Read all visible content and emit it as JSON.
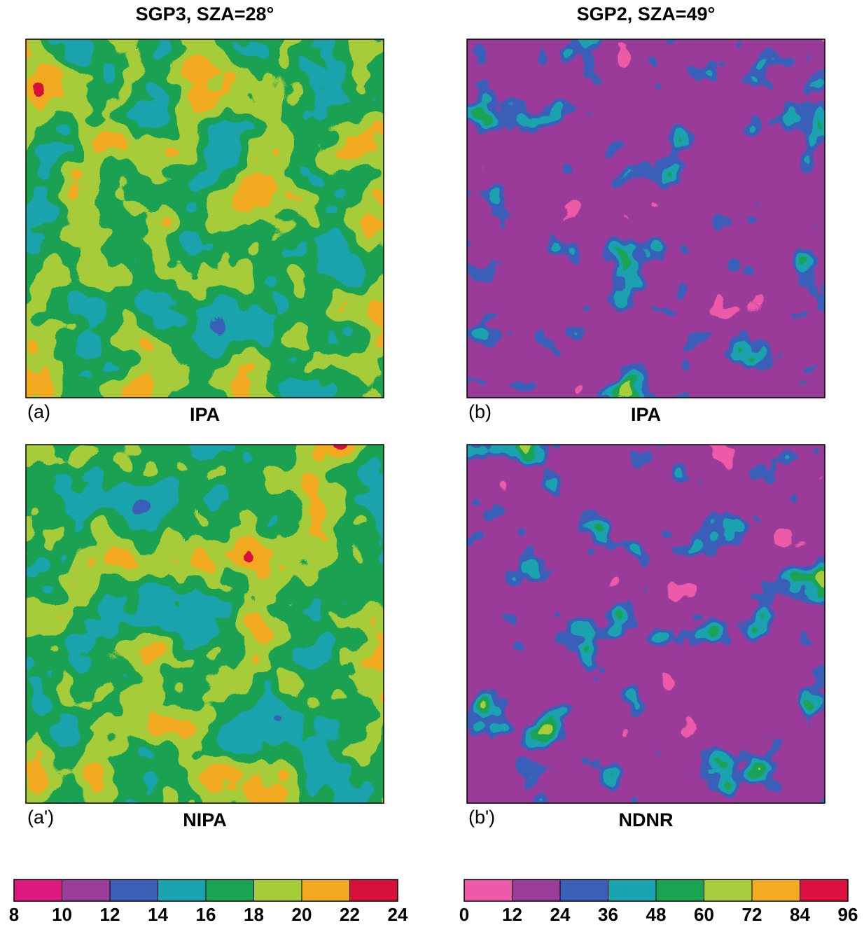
{
  "columns": [
    {
      "title": "SGP3, SZA=28°",
      "panels": [
        {
          "label": "(a)",
          "method": "IPA"
        },
        {
          "label": "(a')",
          "method": "NIPA"
        }
      ]
    },
    {
      "title": "SGP2, SZA=49°",
      "panels": [
        {
          "label": "(b)",
          "method": "IPA"
        },
        {
          "label": "(b')",
          "method": "NDNR"
        }
      ]
    }
  ],
  "colorbars": [
    {
      "ticks": [
        8,
        10,
        12,
        14,
        16,
        18,
        20,
        22,
        24
      ],
      "colors": [
        "#dc1a80",
        "#9b3c9a",
        "#3b60b6",
        "#1aa3ae",
        "#1aa352",
        "#a6cc3a",
        "#f2aa20",
        "#d8103c"
      ]
    },
    {
      "ticks": [
        0,
        12,
        24,
        36,
        48,
        60,
        72,
        84,
        96
      ],
      "colors": [
        "#ee5aa8",
        "#9a3c9a",
        "#3a60b8",
        "#1aa3b0",
        "#1aa452",
        "#a8cd3c",
        "#f3ac22",
        "#dc1040"
      ]
    }
  ]
}
